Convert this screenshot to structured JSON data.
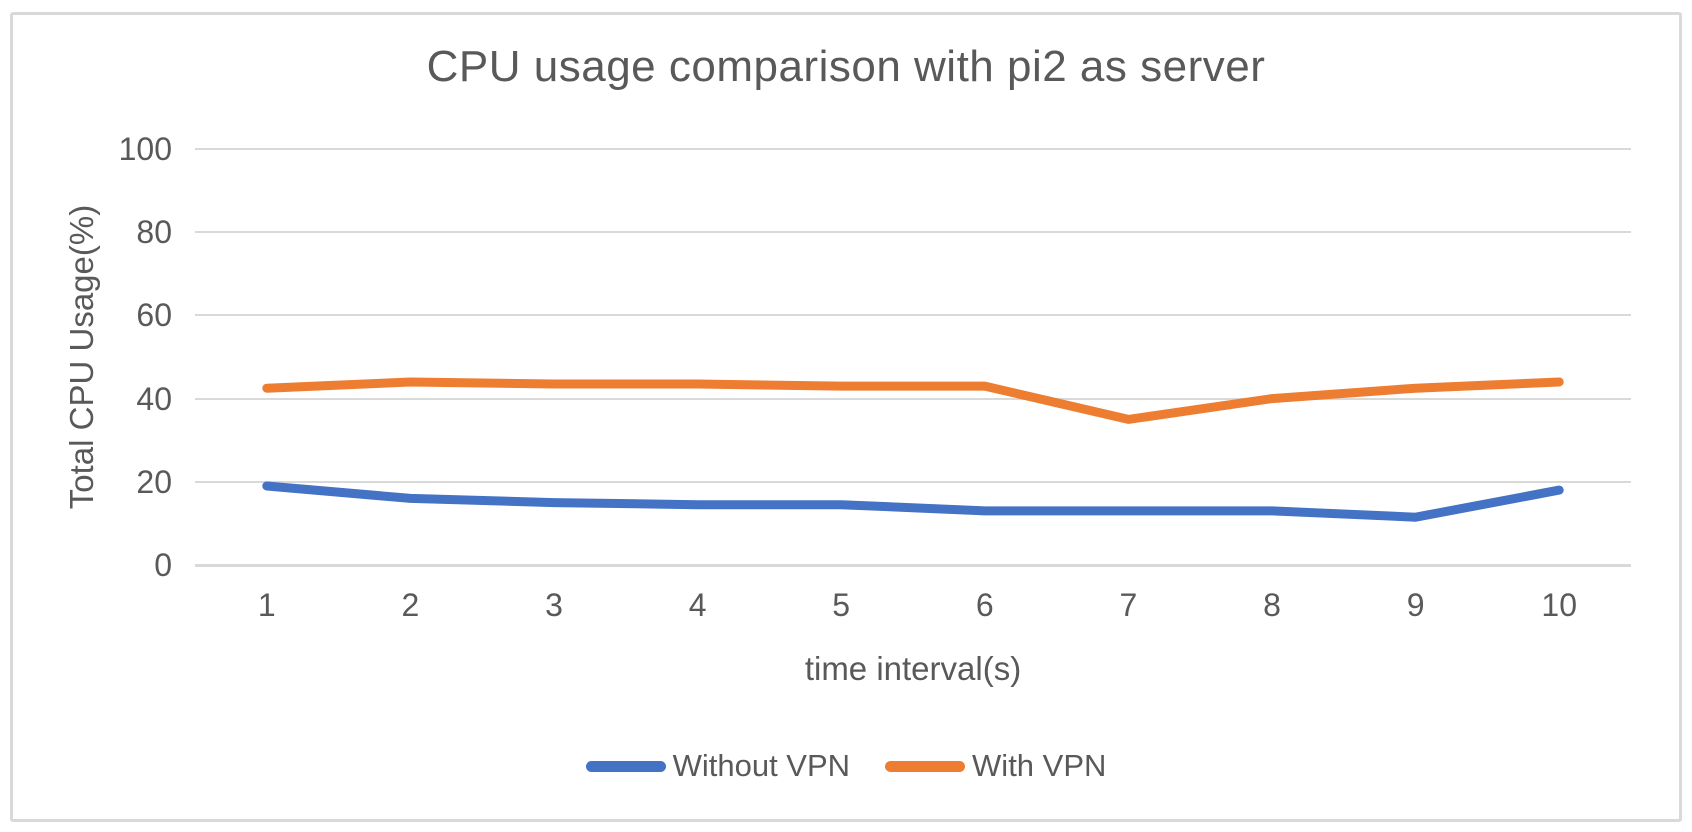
{
  "chart_data": {
    "type": "line",
    "title": "CPU usage comparison with pi2 as server",
    "xlabel": "time interval(s)",
    "ylabel": "Total CPU Usage(%)",
    "x": [
      1,
      2,
      3,
      4,
      5,
      6,
      7,
      8,
      9,
      10
    ],
    "series": [
      {
        "name": "Without VPN",
        "color": "#4472C4",
        "values": [
          19,
          16,
          15,
          14.5,
          14.5,
          13,
          13,
          13,
          11.5,
          18
        ]
      },
      {
        "name": "With VPN",
        "color": "#ED7D31",
        "values": [
          42.5,
          44,
          43.5,
          43.5,
          43,
          43,
          35,
          40,
          42.5,
          44
        ]
      }
    ],
    "ylim": [
      0,
      100
    ],
    "yticks": [
      0,
      20,
      40,
      60,
      80,
      100
    ],
    "grid": "horizontal",
    "legend_position": "bottom",
    "text_color": "#595959",
    "gridline_color": "#D9D9D9",
    "background_color": "#FFFFFF",
    "border_color": "#D9D9D9"
  }
}
